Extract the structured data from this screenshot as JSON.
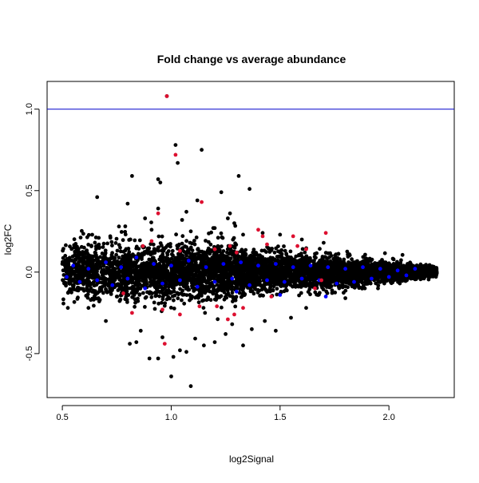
{
  "chart_data": {
    "type": "scatter",
    "title": "Fold change vs average abundance",
    "xlabel": "log2Signal",
    "ylabel": "log2FC",
    "xlim": [
      0.43,
      2.3
    ],
    "ylim": [
      -0.77,
      1.17
    ],
    "x_ticks": [
      {
        "value": 0.5,
        "label": "0.5"
      },
      {
        "value": 1.0,
        "label": "1.0"
      },
      {
        "value": 1.5,
        "label": "1.5"
      },
      {
        "value": 2.0,
        "label": "2.0"
      }
    ],
    "y_ticks": [
      {
        "value": -0.5,
        "label": "-0.5"
      },
      {
        "value": 0.0,
        "label": "0.0"
      },
      {
        "value": 0.5,
        "label": "0.5"
      },
      {
        "value": 1.0,
        "label": "1.0"
      }
    ],
    "reference_line": {
      "y": 1.0,
      "color": "#0000cc"
    },
    "colors": {
      "background": "#000000",
      "highlight_blue": "#0000ff",
      "highlight_red": "#dd1030"
    },
    "grid": false,
    "legend": "none",
    "series": [
      {
        "color": "#000000",
        "points": [
          [
            0.98,
            1.08
          ],
          [
            1.02,
            0.78
          ],
          [
            1.14,
            0.75
          ],
          [
            1.03,
            0.67
          ],
          [
            1.31,
            0.59
          ],
          [
            0.82,
            0.59
          ],
          [
            0.94,
            0.57
          ],
          [
            0.95,
            0.55
          ],
          [
            1.36,
            0.51
          ],
          [
            1.23,
            0.49
          ],
          [
            0.66,
            0.46
          ],
          [
            0.94,
            0.39
          ],
          [
            1.07,
            0.37
          ],
          [
            1.27,
            0.36
          ],
          [
            1.29,
            0.3
          ],
          [
            0.76,
            0.28
          ],
          [
            0.91,
            0.26
          ],
          [
            1.09,
            0.25
          ],
          [
            1.2,
            0.27
          ],
          [
            1.42,
            0.24
          ],
          [
            1.12,
            0.44
          ],
          [
            0.88,
            0.33
          ],
          [
            1.05,
            0.32
          ],
          [
            1.26,
            0.33
          ],
          [
            1.33,
            0.23
          ],
          [
            0.72,
            0.22
          ],
          [
            1.5,
            0.23
          ],
          [
            1.6,
            0.2
          ],
          [
            1.7,
            0.18
          ],
          [
            0.6,
            0.15
          ],
          [
            0.8,
            0.42
          ],
          [
            0.84,
            -0.43
          ],
          [
            0.81,
            -0.44
          ],
          [
            0.9,
            -0.53
          ],
          [
            0.94,
            -0.53
          ],
          [
            1.0,
            -0.64
          ],
          [
            1.09,
            -0.7
          ],
          [
            1.01,
            -0.52
          ],
          [
            1.07,
            -0.49
          ],
          [
            1.33,
            -0.45
          ],
          [
            1.15,
            -0.45
          ],
          [
            1.2,
            -0.43
          ],
          [
            1.25,
            -0.38
          ],
          [
            1.04,
            -0.48
          ],
          [
            0.96,
            -0.4
          ],
          [
            1.37,
            -0.35
          ],
          [
            1.48,
            -0.36
          ],
          [
            0.7,
            -0.3
          ],
          [
            0.86,
            -0.36
          ],
          [
            1.28,
            -0.32
          ],
          [
            1.43,
            -0.3
          ],
          [
            1.55,
            -0.28
          ],
          [
            0.62,
            -0.22
          ],
          [
            1.62,
            -0.22
          ],
          [
            1.8,
            -0.16
          ],
          [
            1.95,
            -0.1
          ],
          [
            2.05,
            -0.07
          ],
          [
            2.15,
            -0.04
          ],
          [
            1.9,
            0.08
          ],
          [
            2.1,
            0.05
          ],
          [
            0.55,
            -0.1
          ],
          [
            0.5,
            0.05
          ],
          [
            0.52,
            -0.02
          ],
          [
            0.65,
            0.12
          ],
          [
            0.75,
            -0.15
          ]
        ]
      },
      {
        "color": "#0000ff",
        "points": [
          [
            0.52,
            -0.03
          ],
          [
            0.55,
            0.04
          ],
          [
            0.58,
            -0.06
          ],
          [
            0.62,
            0.02
          ],
          [
            0.66,
            -0.05
          ],
          [
            0.7,
            0.06
          ],
          [
            0.73,
            -0.08
          ],
          [
            0.77,
            0.03
          ],
          [
            0.8,
            -0.04
          ],
          [
            0.84,
            0.09
          ],
          [
            0.88,
            -0.1
          ],
          [
            0.92,
            0.05
          ],
          [
            0.96,
            -0.07
          ],
          [
            1.0,
            0.04
          ],
          [
            1.04,
            -0.05
          ],
          [
            1.08,
            0.07
          ],
          [
            1.12,
            -0.09
          ],
          [
            1.16,
            0.03
          ],
          [
            1.2,
            -0.06
          ],
          [
            1.24,
            0.05
          ],
          [
            1.28,
            -0.04
          ],
          [
            1.32,
            0.06
          ],
          [
            1.36,
            -0.08
          ],
          [
            1.4,
            0.04
          ],
          [
            1.44,
            -0.05
          ],
          [
            1.48,
            0.05
          ],
          [
            1.52,
            -0.06
          ],
          [
            1.56,
            0.03
          ],
          [
            1.6,
            -0.04
          ],
          [
            1.64,
            0.04
          ],
          [
            1.68,
            -0.05
          ],
          [
            1.72,
            0.03
          ],
          [
            1.76,
            -0.07
          ],
          [
            1.8,
            0.02
          ],
          [
            1.84,
            -0.06
          ],
          [
            1.88,
            0.03
          ],
          [
            1.92,
            -0.04
          ],
          [
            1.96,
            0.02
          ],
          [
            2.0,
            -0.03
          ],
          [
            2.04,
            0.01
          ],
          [
            2.08,
            -0.02
          ],
          [
            2.12,
            0.02
          ],
          [
            1.71,
            -0.15
          ],
          [
            1.5,
            -0.14
          ],
          [
            1.3,
            -0.12
          ]
        ]
      },
      {
        "color": "#dd1030",
        "points": [
          [
            0.98,
            1.08
          ],
          [
            1.02,
            0.72
          ],
          [
            1.14,
            0.43
          ],
          [
            0.94,
            0.36
          ],
          [
            1.4,
            0.26
          ],
          [
            1.42,
            0.22
          ],
          [
            1.56,
            0.22
          ],
          [
            1.71,
            0.24
          ],
          [
            1.58,
            0.16
          ],
          [
            1.44,
            0.17
          ],
          [
            1.27,
            0.16
          ],
          [
            1.2,
            0.14
          ],
          [
            1.04,
            0.13
          ],
          [
            0.87,
            0.16
          ],
          [
            0.91,
            0.19
          ],
          [
            1.3,
            0.12
          ],
          [
            1.62,
            0.14
          ],
          [
            0.97,
            -0.44
          ],
          [
            0.96,
            -0.23
          ],
          [
            1.04,
            -0.26
          ],
          [
            1.13,
            -0.21
          ],
          [
            1.26,
            -0.29
          ],
          [
            1.29,
            -0.26
          ],
          [
            1.46,
            -0.15
          ],
          [
            1.66,
            -0.1
          ],
          [
            1.69,
            -0.05
          ],
          [
            1.21,
            -0.21
          ],
          [
            0.78,
            -0.13
          ],
          [
            0.82,
            -0.25
          ],
          [
            1.33,
            -0.22
          ]
        ]
      }
    ]
  }
}
